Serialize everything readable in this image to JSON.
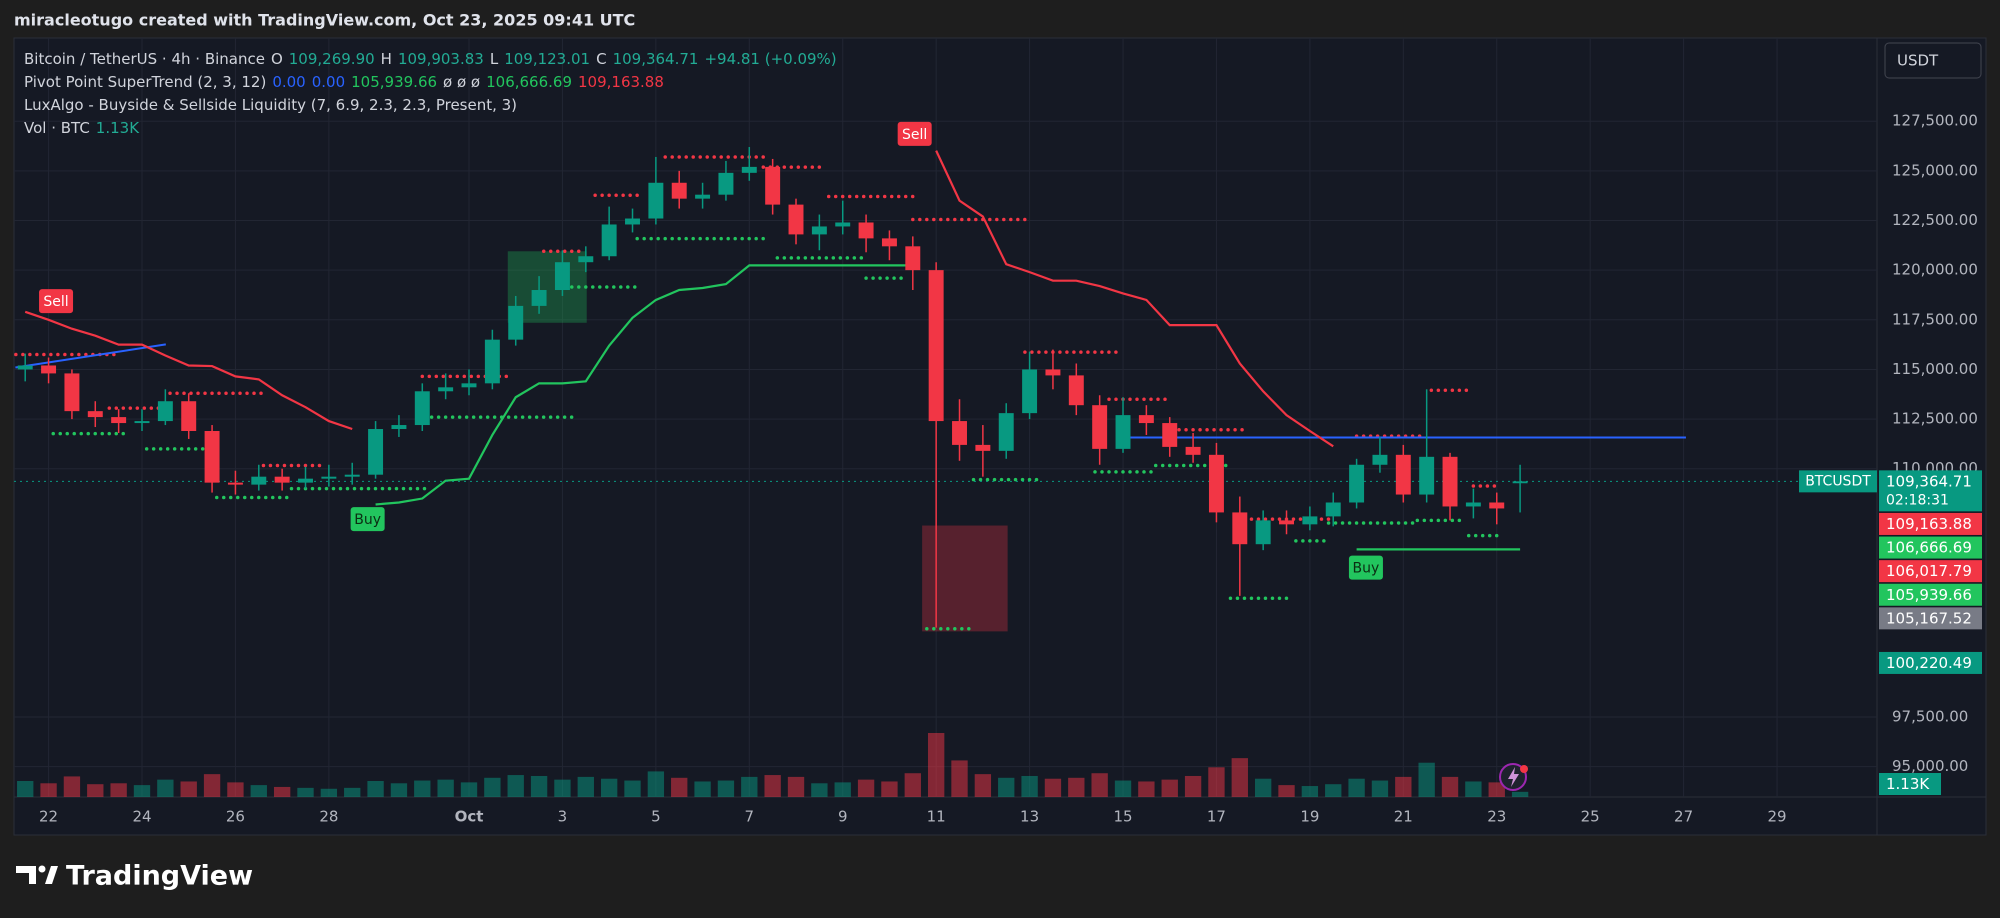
{
  "header": {
    "text": "miracleotugo created with TradingView.com, Oct 23, 2025 09:41 UTC"
  },
  "footer": {
    "brand": "TradingView"
  },
  "chart_data": {
    "type": "candlestick",
    "currency": "USDT",
    "symbol_tag": "BTCUSDT",
    "legend": [
      [
        {
          "text": "Bitcoin / TetherUS · 4h · Binance",
          "color": "#d1d4dc"
        },
        {
          "text": "O",
          "color": "#d1d4dc"
        },
        {
          "text": "109,269.90",
          "color": "#22ab94"
        },
        {
          "text": "H",
          "color": "#d1d4dc"
        },
        {
          "text": "109,903.83",
          "color": "#22ab94"
        },
        {
          "text": "L",
          "color": "#d1d4dc"
        },
        {
          "text": "109,123.01",
          "color": "#22ab94"
        },
        {
          "text": "C",
          "color": "#d1d4dc"
        },
        {
          "text": "109,364.71",
          "color": "#22ab94"
        },
        {
          "text": "+94.81 (+0.09%)",
          "color": "#22ab94"
        }
      ],
      [
        {
          "text": "Pivot Point SuperTrend (2, 3, 12)",
          "color": "#d1d4dc"
        },
        {
          "text": "0.00",
          "color": "#2962ff"
        },
        {
          "text": "0.00",
          "color": "#2962ff"
        },
        {
          "text": "105,939.66",
          "color": "#22c55e"
        },
        {
          "text": "ø ø ø",
          "color": "#d1d4dc"
        },
        {
          "text": "106,666.69",
          "color": "#22c55e"
        },
        {
          "text": "109,163.88",
          "color": "#f23645"
        }
      ],
      [
        {
          "text": "LuxAlgo - Buyside & Sellside Liquidity (7, 6.9, 2.3, 2.3, Present, 3)",
          "color": "#d1d4dc"
        }
      ],
      [
        {
          "text": "Vol · BTC",
          "color": "#d1d4dc"
        },
        {
          "text": "1.13K",
          "color": "#22ab94"
        }
      ]
    ],
    "up_color": "#089981",
    "down_color": "#f23645",
    "grid": true,
    "xlim": [
      21.26,
      61.14
    ],
    "ylim": [
      93470,
      131690
    ],
    "xticks": [
      22,
      24,
      26,
      28,
      {
        "value": 31,
        "label": "Oct"
      },
      {
        "value": 33,
        "label": "3"
      },
      {
        "value": 35,
        "label": "5"
      },
      {
        "value": 37,
        "label": "7"
      },
      {
        "value": 39,
        "label": "9"
      },
      {
        "value": 41,
        "label": "11"
      },
      {
        "value": 43,
        "label": "13"
      },
      {
        "value": 45,
        "label": "15"
      },
      {
        "value": 47,
        "label": "17"
      },
      {
        "value": 49,
        "label": "19"
      },
      {
        "value": 51,
        "label": "21"
      },
      {
        "value": 53,
        "label": "23"
      },
      {
        "value": 55,
        "label": "25"
      },
      {
        "value": 57,
        "label": "27"
      },
      {
        "value": 59,
        "label": "29"
      }
    ],
    "yticks": [
      {
        "value": 95000,
        "label": "95,000.00"
      },
      {
        "value": 97500,
        "label": "97,500.00"
      },
      {
        "value": 110000,
        "label": "110,000.00"
      },
      {
        "value": 112500,
        "label": "112,500.00"
      },
      {
        "value": 115000,
        "label": "115,000.00"
      },
      {
        "value": 117500,
        "label": "117,500.00"
      },
      {
        "value": 120000,
        "label": "120,000.00"
      },
      {
        "value": 122500,
        "label": "122,500.00"
      },
      {
        "value": 125000,
        "label": "125,000.00"
      },
      {
        "value": 127500,
        "label": "127,500.00"
      }
    ],
    "x": [
      21.5,
      22,
      22.5,
      23,
      23.5,
      24,
      24.5,
      25,
      25.5,
      26,
      26.5,
      27,
      27.5,
      28,
      28.5,
      29,
      29.5,
      30,
      30.5,
      31,
      31.5,
      32,
      32.5,
      33,
      33.5,
      34,
      34.5,
      35,
      35.5,
      36,
      36.5,
      37,
      37.5,
      38,
      38.5,
      39,
      39.5,
      40,
      40.5,
      41,
      41.5,
      42,
      42.5,
      43,
      43.5,
      44,
      44.5,
      45,
      45.5,
      46,
      46.5,
      47,
      47.5,
      48,
      48.5,
      49,
      49.5,
      50,
      50.5,
      51,
      51.5,
      52,
      52.5,
      53,
      53.5
    ],
    "open": [
      115000,
      115200,
      114800,
      112900,
      112600,
      112300,
      112400,
      113400,
      111900,
      109300,
      109200,
      109600,
      109300,
      109500,
      109600,
      109700,
      112000,
      112200,
      113900,
      114100,
      114300,
      116500,
      118200,
      119000,
      120400,
      120700,
      122300,
      122600,
      124400,
      123600,
      123800,
      124900,
      125200,
      123300,
      121800,
      122200,
      122400,
      121600,
      121200,
      120000,
      112400,
      111200,
      110900,
      112800,
      115000,
      114700,
      113200,
      111000,
      112700,
      112300,
      111100,
      110700,
      107800,
      106200,
      107400,
      107200,
      107600,
      108300,
      110200,
      110700,
      108700,
      110600,
      108100,
      108300,
      109269.9
    ],
    "high": [
      115800,
      115600,
      115000,
      113400,
      113000,
      113000,
      114000,
      113800,
      112200,
      109900,
      110200,
      110000,
      110100,
      110200,
      110300,
      112400,
      112700,
      114300,
      114800,
      115000,
      117000,
      118700,
      119700,
      121000,
      121200,
      123200,
      123100,
      125700,
      125000,
      124400,
      125500,
      126200,
      125600,
      123600,
      122800,
      123500,
      122800,
      122000,
      121700,
      120400,
      113500,
      112200,
      113300,
      115900,
      116000,
      115300,
      113700,
      113600,
      113200,
      112600,
      111800,
      111300,
      108600,
      107900,
      107900,
      108100,
      108800,
      110500,
      111600,
      111200,
      114000,
      110800,
      109000,
      108800,
      110200
    ],
    "low": [
      114400,
      114300,
      112500,
      112100,
      111800,
      111900,
      112200,
      111500,
      108800,
      108700,
      108900,
      108900,
      109000,
      109100,
      109200,
      109500,
      111600,
      111900,
      113500,
      113700,
      114000,
      116200,
      117800,
      118700,
      119900,
      120500,
      121900,
      122300,
      123100,
      123100,
      123500,
      124500,
      122800,
      121300,
      121000,
      121800,
      120900,
      120500,
      119000,
      102000,
      110400,
      109600,
      110500,
      112500,
      114000,
      112700,
      110200,
      110800,
      111700,
      110600,
      110300,
      107300,
      103600,
      105900,
      106700,
      106900,
      107100,
      108000,
      109800,
      108300,
      108300,
      107400,
      107500,
      107200,
      107800
    ],
    "close": [
      115200,
      114800,
      112900,
      112600,
      112300,
      112400,
      113400,
      111900,
      109300,
      109200,
      109600,
      109300,
      109500,
      109600,
      109700,
      112000,
      112200,
      113900,
      114100,
      114300,
      116500,
      118200,
      119000,
      120400,
      120700,
      122300,
      122600,
      124400,
      123600,
      123800,
      124900,
      125200,
      123300,
      121800,
      122200,
      122400,
      121600,
      121200,
      120000,
      112400,
      111200,
      110900,
      112800,
      115000,
      114700,
      113200,
      111000,
      112700,
      112300,
      111100,
      110700,
      107800,
      106200,
      107400,
      107200,
      107600,
      108300,
      110200,
      110700,
      108700,
      110600,
      108100,
      108300,
      108000,
      109364.71
    ],
    "volume": [
      3500,
      3000,
      4500,
      2800,
      3000,
      2600,
      3800,
      3400,
      5000,
      3200,
      2600,
      2200,
      2000,
      1800,
      2000,
      3500,
      3000,
      3600,
      3800,
      3200,
      4200,
      4800,
      4600,
      3800,
      4400,
      4000,
      3600,
      5600,
      4200,
      3400,
      3600,
      4400,
      4800,
      4400,
      3000,
      3200,
      3800,
      3400,
      5200,
      14000,
      8000,
      5000,
      4200,
      4600,
      4000,
      4200,
      5200,
      3600,
      3400,
      3800,
      4600,
      6500,
      8500,
      4000,
      2600,
      2400,
      2800,
      4000,
      3600,
      4400,
      7500,
      4400,
      3400,
      3200,
      1130
    ],
    "volume_label": {
      "label": "1.13K",
      "color": "#089981"
    },
    "supertrend": [
      {
        "color": "#f23645",
        "values": [
          117900,
          117500,
          117050,
          116700,
          116250,
          116250,
          115700,
          115200,
          115170,
          114650,
          114500,
          113700,
          113100,
          112400,
          112000,
          null,
          null,
          null,
          null,
          null,
          null,
          null,
          null,
          null,
          null,
          null,
          null,
          null,
          null,
          null,
          null,
          null,
          null,
          null,
          null,
          null,
          null,
          null,
          null,
          126020,
          123500,
          122700,
          120300,
          119900,
          119470,
          119470,
          119200,
          118830,
          118500,
          117230,
          117230,
          117230,
          115300,
          113900,
          112700,
          111900,
          111130,
          null,
          null,
          null,
          null,
          null,
          null,
          null,
          null
        ]
      },
      {
        "color": "#22c55e",
        "values": [
          null,
          null,
          null,
          null,
          null,
          null,
          null,
          null,
          null,
          null,
          null,
          null,
          null,
          null,
          null,
          108200,
          108300,
          108500,
          109400,
          109500,
          111700,
          113600,
          114300,
          114300,
          114400,
          116200,
          117600,
          118500,
          119000,
          119100,
          119300,
          120240,
          120240,
          120240,
          120240,
          120240,
          120240,
          120240,
          120240,
          null,
          null,
          null,
          null,
          null,
          null,
          null,
          null,
          null,
          null,
          null,
          null,
          null,
          null,
          null,
          null,
          null,
          null,
          105939.66,
          105939.66,
          105939.66,
          105939.66,
          105939.66,
          105939.66,
          105939.66,
          105939.66
        ]
      }
    ],
    "liquidity": [
      {
        "color": "#f23645",
        "segments": [
          [
            21.3,
            23.4,
            115750
          ],
          [
            23.3,
            24.6,
            113050
          ],
          [
            24.6,
            26.6,
            113800
          ],
          [
            26.6,
            27.9,
            110160
          ],
          [
            30.0,
            31.9,
            114650
          ],
          [
            32.6,
            33.4,
            120950
          ],
          [
            33.7,
            34.7,
            123770
          ],
          [
            35.2,
            37.3,
            125700
          ],
          [
            37.3,
            38.6,
            125190
          ],
          [
            38.7,
            40.5,
            123710
          ],
          [
            40.5,
            42.9,
            122550
          ],
          [
            42.9,
            44.9,
            115870
          ],
          [
            44.7,
            45.9,
            113500
          ],
          [
            45.9,
            47.6,
            111960
          ],
          [
            47.6,
            49.4,
            107460
          ],
          [
            50.0,
            51.4,
            111640
          ],
          [
            51.6,
            52.4,
            113950
          ],
          [
            52.5,
            53.0,
            109130
          ]
        ]
      },
      {
        "color": "#22c55e",
        "segments": [
          [
            22.1,
            23.7,
            111770
          ],
          [
            24.1,
            25.5,
            111000
          ],
          [
            25.6,
            27.2,
            108550
          ],
          [
            27.2,
            30.1,
            109000
          ],
          [
            30.2,
            33.2,
            112600
          ],
          [
            33.2,
            34.6,
            119150
          ],
          [
            34.6,
            37.3,
            121590
          ],
          [
            37.6,
            39.5,
            120620
          ],
          [
            39.5,
            40.3,
            119600
          ],
          [
            40.8,
            41.8,
            101940
          ],
          [
            41.8,
            43.2,
            109450
          ],
          [
            44.4,
            45.7,
            109840
          ],
          [
            45.7,
            47.2,
            110160
          ],
          [
            47.3,
            48.5,
            103480
          ],
          [
            48.7,
            49.4,
            106370
          ],
          [
            49.4,
            51.3,
            107270
          ],
          [
            51.3,
            52.2,
            107400
          ],
          [
            52.4,
            53.0,
            106630
          ]
        ]
      }
    ],
    "zones": [
      {
        "x": [
          40.7,
          42.53
        ],
        "y": [
          101810,
          107140
        ],
        "color": "#f23645"
      },
      {
        "x": [
          31.83,
          33.52
        ],
        "y": [
          117350,
          120950
        ],
        "color": "#22c55e"
      }
    ],
    "trendlines": [
      {
        "x": [
          21.29,
          24.51
        ],
        "y": [
          115100,
          116260
        ],
        "color": "#2962ff"
      },
      {
        "x": [
          44.85,
          57.05
        ],
        "y": [
          111570,
          111570
        ],
        "color": "#2962ff"
      }
    ],
    "signals": [
      {
        "label": "Sell",
        "x": 22.16,
        "y": 118440,
        "color": "#f23645",
        "text_color": "#ffffff"
      },
      {
        "label": "Sell",
        "x": 40.54,
        "y": 126860,
        "color": "#f23645",
        "text_color": "#ffffff"
      },
      {
        "label": "Buy",
        "x": 28.83,
        "y": 107460,
        "color": "#22c55e",
        "text_color": "#0b2e13"
      },
      {
        "label": "Buy",
        "x": 50.2,
        "y": 105020,
        "color": "#22c55e",
        "text_color": "#0b2e13"
      }
    ],
    "price_labels": [
      {
        "value": 109364.71,
        "label": "109,364.71",
        "sub": "02:18:31",
        "color": "#089981"
      },
      {
        "value": 109163.88,
        "label": "109,163.88",
        "color": "#f23645"
      },
      {
        "value": 106666.69,
        "label": "106,666.69",
        "color": "#22c55e"
      },
      {
        "value": 106017.79,
        "label": "106,017.79",
        "color": "#f23645"
      },
      {
        "value": 105939.66,
        "label": "105,939.66",
        "color": "#22c55e"
      },
      {
        "value": 105167.52,
        "label": "105,167.52",
        "color": "#787b86"
      },
      {
        "value": 100220.49,
        "label": "100,220.49",
        "color": "#089981"
      }
    ]
  }
}
